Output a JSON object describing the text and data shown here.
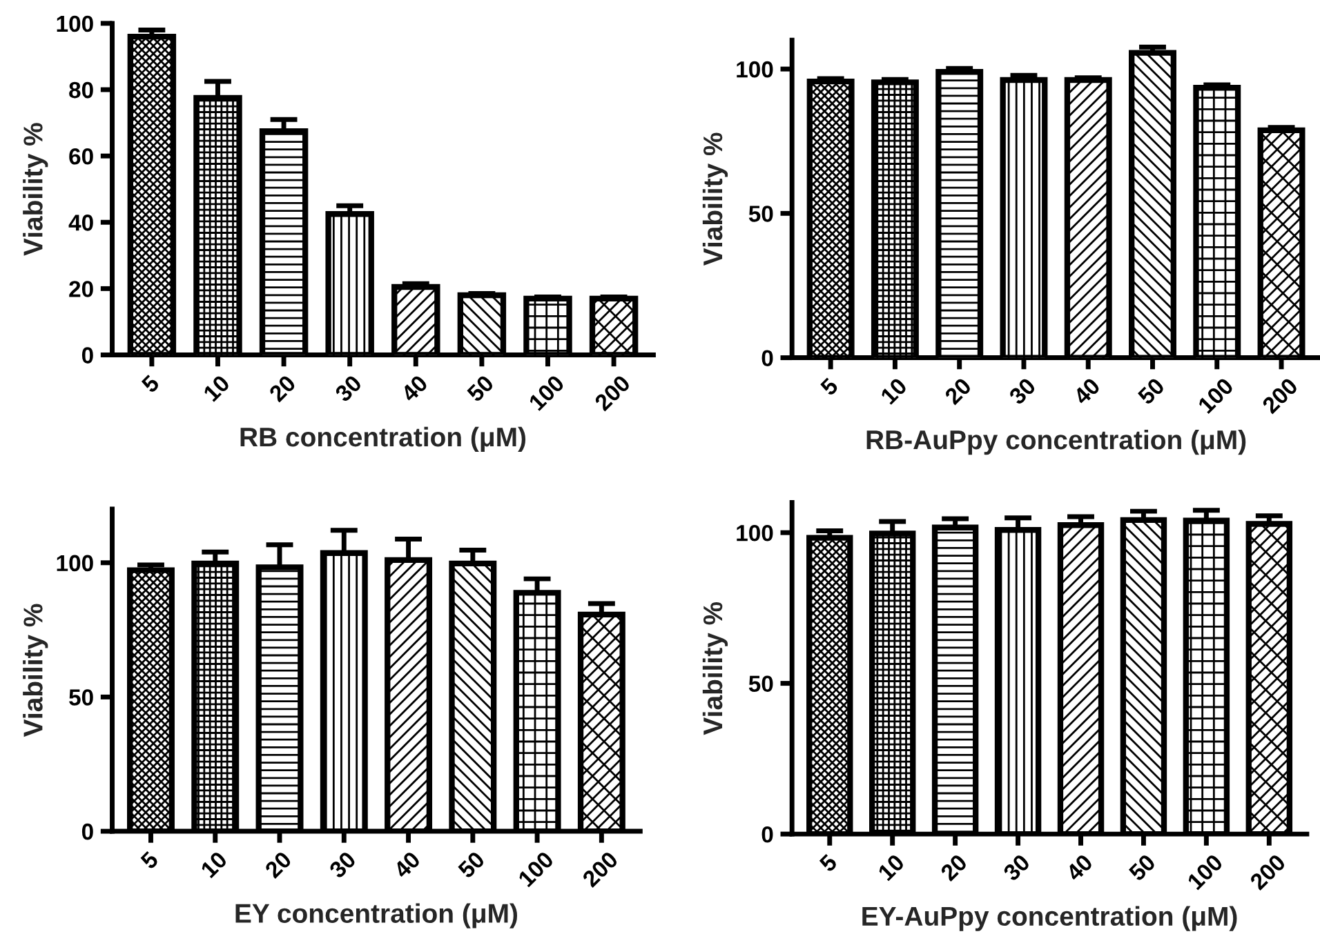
{
  "chart_data": [
    {
      "type": "bar",
      "xlabel": "RB concentration (μM)",
      "ylabel": "Viability %",
      "categories": [
        "5",
        "10",
        "20",
        "30",
        "40",
        "50",
        "100",
        "200"
      ],
      "values": [
        96,
        77.5,
        67.5,
        42.5,
        20.5,
        18,
        17,
        17
      ],
      "errors": [
        2,
        5,
        3.5,
        2.5,
        1,
        0.5,
        0.5,
        0.5
      ],
      "color": "#000000",
      "ylim": [
        0,
        100
      ],
      "yticks": [
        0,
        20,
        40,
        60,
        80,
        100
      ],
      "grid": false,
      "legend": false
    },
    {
      "type": "bar",
      "xlabel": "RB-AuPpy concentration (μM)",
      "ylabel": "Viability %",
      "categories": [
        "5",
        "10",
        "20",
        "30",
        "40",
        "50",
        "100",
        "200"
      ],
      "values": [
        95.7,
        95.4,
        99,
        96.2,
        96.2,
        105.6,
        93.5,
        78.8
      ],
      "errors": [
        1,
        1,
        1.2,
        1.6,
        0.8,
        2,
        1,
        1
      ],
      "color": "#000000",
      "ylim": [
        0,
        110
      ],
      "yticks": [
        0,
        50,
        100
      ],
      "grid": false,
      "legend": false
    },
    {
      "type": "bar",
      "xlabel": "EY concentration (μM)",
      "ylabel": "Viability %",
      "categories": [
        "5",
        "10",
        "20",
        "30",
        "40",
        "50",
        "100",
        "200"
      ],
      "values": [
        97.2,
        99.7,
        98.3,
        103.6,
        101,
        99.7,
        88.8,
        80.7
      ],
      "errors": [
        2,
        4.3,
        8.4,
        8.5,
        7.8,
        5,
        5.2,
        4.1
      ],
      "color": "#000000",
      "ylim": [
        0,
        120
      ],
      "yticks": [
        0,
        50,
        100
      ],
      "grid": false,
      "legend": false
    },
    {
      "type": "bar",
      "xlabel": "EY-AuPpy concentration (μM)",
      "ylabel": "Viability %",
      "categories": [
        "5",
        "10",
        "20",
        "30",
        "40",
        "50",
        "100",
        "200"
      ],
      "values": [
        98.3,
        99.7,
        101.7,
        100.9,
        102.5,
        104.2,
        104,
        102.9
      ],
      "errors": [
        2.3,
        4,
        2.9,
        4,
        2.8,
        2.9,
        3.4,
        2.7
      ],
      "color": "#000000",
      "ylim": [
        0,
        110
      ],
      "yticks": [
        0,
        50,
        100
      ],
      "grid": false,
      "legend": false
    }
  ]
}
